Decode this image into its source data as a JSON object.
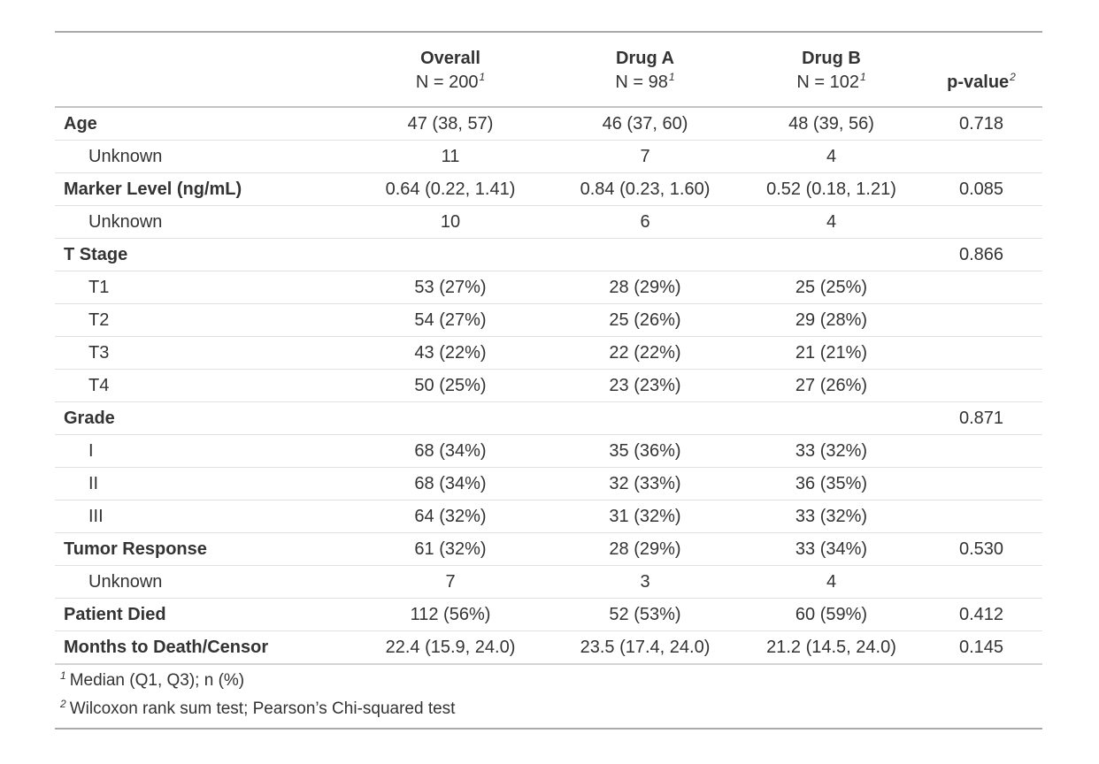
{
  "chart_data": {
    "type": "table",
    "header": {
      "group_columns": [
        {
          "label": "Overall",
          "n_label": "N = 200",
          "footnote_mark": "1"
        },
        {
          "label": "Drug A",
          "n_label": "N = 98",
          "footnote_mark": "1"
        },
        {
          "label": "Drug B",
          "n_label": "N = 102",
          "footnote_mark": "1"
        }
      ],
      "p_value_label": "p-value",
      "p_value_footnote_mark": "2"
    },
    "rows": [
      {
        "label": "Age",
        "bold": true,
        "indent": false,
        "overall": "47 (38, 57)",
        "drug_a": "46 (37, 60)",
        "drug_b": "48 (39, 56)",
        "p_value": "0.718"
      },
      {
        "label": "Unknown",
        "bold": false,
        "indent": true,
        "overall": "11",
        "drug_a": "7",
        "drug_b": "4",
        "p_value": ""
      },
      {
        "label": "Marker Level (ng/mL)",
        "bold": true,
        "indent": false,
        "overall": "0.64 (0.22, 1.41)",
        "drug_a": "0.84 (0.23, 1.60)",
        "drug_b": "0.52 (0.18, 1.21)",
        "p_value": "0.085"
      },
      {
        "label": "Unknown",
        "bold": false,
        "indent": true,
        "overall": "10",
        "drug_a": "6",
        "drug_b": "4",
        "p_value": ""
      },
      {
        "label": "T Stage",
        "bold": true,
        "indent": false,
        "overall": "",
        "drug_a": "",
        "drug_b": "",
        "p_value": "0.866"
      },
      {
        "label": "T1",
        "bold": false,
        "indent": true,
        "overall": "53 (27%)",
        "drug_a": "28 (29%)",
        "drug_b": "25 (25%)",
        "p_value": ""
      },
      {
        "label": "T2",
        "bold": false,
        "indent": true,
        "overall": "54 (27%)",
        "drug_a": "25 (26%)",
        "drug_b": "29 (28%)",
        "p_value": ""
      },
      {
        "label": "T3",
        "bold": false,
        "indent": true,
        "overall": "43 (22%)",
        "drug_a": "22 (22%)",
        "drug_b": "21 (21%)",
        "p_value": ""
      },
      {
        "label": "T4",
        "bold": false,
        "indent": true,
        "overall": "50 (25%)",
        "drug_a": "23 (23%)",
        "drug_b": "27 (26%)",
        "p_value": ""
      },
      {
        "label": "Grade",
        "bold": true,
        "indent": false,
        "overall": "",
        "drug_a": "",
        "drug_b": "",
        "p_value": "0.871"
      },
      {
        "label": "I",
        "bold": false,
        "indent": true,
        "overall": "68 (34%)",
        "drug_a": "35 (36%)",
        "drug_b": "33 (32%)",
        "p_value": ""
      },
      {
        "label": "II",
        "bold": false,
        "indent": true,
        "overall": "68 (34%)",
        "drug_a": "32 (33%)",
        "drug_b": "36 (35%)",
        "p_value": ""
      },
      {
        "label": "III",
        "bold": false,
        "indent": true,
        "overall": "64 (32%)",
        "drug_a": "31 (32%)",
        "drug_b": "33 (32%)",
        "p_value": ""
      },
      {
        "label": "Tumor Response",
        "bold": true,
        "indent": false,
        "overall": "61 (32%)",
        "drug_a": "28 (29%)",
        "drug_b": "33 (34%)",
        "p_value": "0.530"
      },
      {
        "label": "Unknown",
        "bold": false,
        "indent": true,
        "overall": "7",
        "drug_a": "3",
        "drug_b": "4",
        "p_value": ""
      },
      {
        "label": "Patient Died",
        "bold": true,
        "indent": false,
        "overall": "112 (56%)",
        "drug_a": "52 (53%)",
        "drug_b": "60 (59%)",
        "p_value": "0.412"
      },
      {
        "label": "Months to Death/Censor",
        "bold": true,
        "indent": false,
        "overall": "22.4 (15.9, 24.0)",
        "drug_a": "23.5 (17.4, 24.0)",
        "drug_b": "21.2 (14.5, 24.0)",
        "p_value": "0.145"
      }
    ],
    "footnotes": [
      {
        "mark": "1",
        "text": "Median (Q1, Q3); n (%)"
      },
      {
        "mark": "2",
        "text": "Wilcoxon rank sum test; Pearson’s Chi-squared test"
      }
    ]
  },
  "colors": {
    "text": "#333333",
    "border_outer": "#A9A9A9",
    "border_header": "#C4C4C4",
    "border_row": "#E0E0E0",
    "border_body_bottom": "#D3D3D3",
    "background": "#FFFFFF"
  }
}
